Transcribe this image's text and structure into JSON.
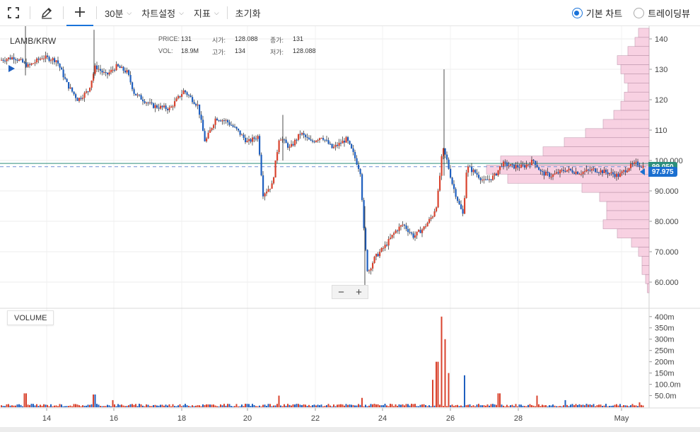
{
  "toolbar": {
    "interval_label": "30분",
    "chart_settings_label": "차트설정",
    "indicators_label": "지표",
    "reset_label": "초기화"
  },
  "view_mode": {
    "options": [
      "기본 차트",
      "트레이딩뷰"
    ],
    "selected": "기본 차트"
  },
  "chart": {
    "pair": "LAMB/KRW",
    "ohlc": {
      "price_label": "PRICE:",
      "price": "131",
      "open_label": "시가:",
      "open": "128.088",
      "close_label": "종가:",
      "close": "131",
      "vol_label": "VOL:",
      "vol": "18.9M",
      "high_label": "고가:",
      "high": "134",
      "low_label": "저가:",
      "low": "128.088"
    },
    "current_price": "97.975",
    "reference_price": "99.050",
    "price_ticks": [
      "140",
      "130",
      "120",
      "110",
      "100.000",
      "90.000",
      "80.000",
      "70.000",
      "60.000"
    ],
    "volume_ticks": [
      "400m",
      "350m",
      "300m",
      "250m",
      "200m",
      "150m",
      "100.0m",
      "50.0m"
    ],
    "date_ticks": [
      "14",
      "16",
      "18",
      "20",
      "22",
      "24",
      "26",
      "28",
      "May"
    ],
    "volume_label": "VOLUME",
    "zoom_out": "−",
    "zoom_in": "+"
  },
  "colors": {
    "up": "#d9432e",
    "down": "#1f5fbf",
    "accent": "#1a73d9",
    "volume_profile": "#f7c9de",
    "reference_line": "#2d8f7b"
  }
}
